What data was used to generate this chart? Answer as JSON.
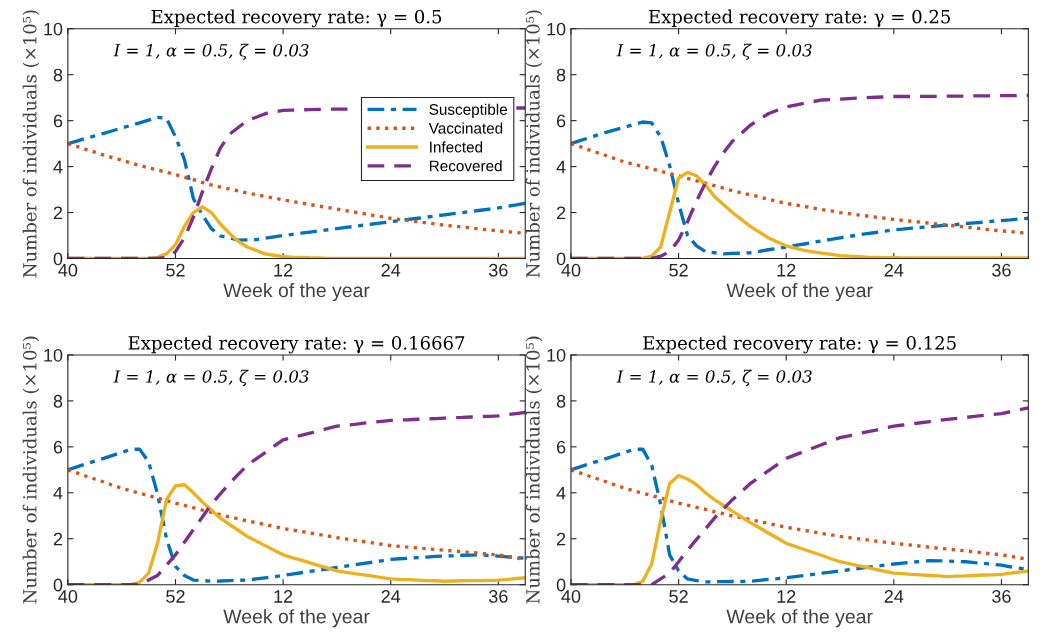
{
  "chart_data": [
    {
      "type": "line",
      "title": "Expected recovery rate: γ = 0.5",
      "xlabel": "Week of the year",
      "ylabel": "Number of individuals (×10⁵)",
      "annotations": [
        "I = 1, α = 0.5, ζ = 0.03"
      ],
      "categories": [
        "40",
        null,
        null,
        null,
        null,
        null,
        null,
        null,
        null,
        null,
        null,
        null,
        "52",
        null,
        null,
        null,
        null,
        null,
        null,
        null,
        null,
        null,
        null,
        null,
        "12",
        null,
        null,
        null,
        null,
        null,
        null,
        null,
        null,
        null,
        null,
        null,
        "24",
        null,
        null,
        null,
        null,
        null,
        null,
        null,
        null,
        null,
        null,
        null,
        "36",
        null,
        null,
        null
      ],
      "ylim": [
        0,
        10
      ],
      "yticks": [
        0,
        2,
        4,
        6,
        8,
        10
      ],
      "grid": false,
      "legend": "right",
      "marker": "none",
      "series": [
        {
          "name": "Susceptible",
          "color": "#0072bd",
          "line_style": "dashdot",
          "values": [
            5.0,
            5.11,
            5.23,
            5.34,
            5.45,
            5.56,
            5.68,
            5.79,
            5.9,
            6.02,
            6.14,
            6.1,
            5.3,
            4.3,
            2.6,
            1.9,
            1.3,
            0.98,
            0.9,
            0.8,
            0.81,
            0.82,
            0.88,
            0.94,
            1.0,
            1.05,
            1.1,
            1.15,
            1.2,
            1.25,
            1.3,
            1.35,
            1.4,
            1.45,
            1.5,
            1.55,
            1.6,
            1.65,
            1.7,
            1.75,
            1.8,
            1.85,
            1.9,
            1.95,
            2.0,
            2.05,
            2.1,
            2.15,
            2.2,
            2.27,
            2.33,
            2.4
          ]
        },
        {
          "name": "Vaccinated",
          "color": "#d95319",
          "line_style": "dotted",
          "values": [
            5.0,
            4.88,
            4.75,
            4.63,
            4.5,
            4.39,
            4.28,
            4.16,
            4.05,
            3.95,
            3.85,
            3.75,
            3.65,
            3.54,
            3.43,
            3.31,
            3.2,
            3.11,
            3.03,
            2.94,
            2.85,
            2.78,
            2.7,
            2.63,
            2.55,
            2.48,
            2.42,
            2.35,
            2.28,
            2.22,
            2.15,
            2.08,
            2.02,
            1.95,
            1.88,
            1.82,
            1.75,
            1.7,
            1.65,
            1.6,
            1.55,
            1.5,
            1.45,
            1.41,
            1.37,
            1.33,
            1.28,
            1.24,
            1.2,
            1.17,
            1.13,
            1.1
          ]
        },
        {
          "name": "Infected",
          "color": "#edb120",
          "line_style": "solid",
          "values": [
            0,
            0,
            0,
            0,
            0,
            0,
            0,
            0,
            0,
            0,
            0.05,
            0.2,
            0.6,
            1.4,
            2.0,
            2.25,
            2.0,
            1.5,
            1.1,
            0.75,
            0.5,
            0.35,
            0.2,
            0.14,
            0.08,
            0.06,
            0.05,
            0.03,
            0.02,
            0,
            0,
            0,
            0,
            0,
            0,
            0,
            0,
            0,
            0,
            0,
            0,
            0,
            0,
            0,
            0,
            0,
            0,
            0,
            0,
            0,
            0,
            0
          ]
        },
        {
          "name": "Recovered",
          "color": "#7e2f8e",
          "line_style": "dashed",
          "values": [
            0,
            0,
            0,
            0,
            0,
            0,
            0,
            0,
            0,
            0,
            0,
            0.05,
            0.3,
            0.9,
            1.8,
            2.9,
            3.9,
            4.8,
            5.4,
            5.7,
            6.0,
            6.15,
            6.3,
            6.38,
            6.45,
            6.46,
            6.47,
            6.48,
            6.49,
            6.5,
            6.5,
            6.5,
            6.5,
            null,
            null,
            null,
            null,
            null,
            null,
            null,
            null,
            null,
            null,
            null,
            null,
            null,
            null,
            null,
            null,
            null,
            6.55,
            6.55
          ]
        }
      ]
    },
    {
      "type": "line",
      "title": "Expected recovery rate: γ = 0.25",
      "xlabel": "Week of the year",
      "ylabel": "Number of individuals (×10⁵)",
      "annotations": [
        "I = 1, α = 0.5, ζ = 0.03"
      ],
      "categories": [
        "40",
        null,
        null,
        null,
        null,
        null,
        null,
        null,
        null,
        null,
        null,
        null,
        "52",
        null,
        null,
        null,
        null,
        null,
        null,
        null,
        null,
        null,
        null,
        null,
        "12",
        null,
        null,
        null,
        null,
        null,
        null,
        null,
        null,
        null,
        null,
        null,
        "24",
        null,
        null,
        null,
        null,
        null,
        null,
        null,
        null,
        null,
        null,
        null,
        "36",
        null,
        null,
        null
      ],
      "ylim": [
        0,
        10
      ],
      "yticks": [
        0,
        2,
        4,
        6,
        8,
        10
      ],
      "grid": false,
      "marker": "none",
      "series": [
        {
          "color": "#0072bd",
          "line_style": "dashdot",
          "values": [
            5.0,
            5.13,
            5.25,
            5.38,
            5.5,
            5.61,
            5.72,
            5.83,
            5.94,
            5.9,
            5.3,
            4.05,
            2.4,
            1.0,
            0.55,
            0.3,
            0.25,
            0.2,
            0.22,
            0.23,
            0.25,
            0.31,
            0.38,
            0.44,
            0.5,
            0.57,
            0.63,
            0.7,
            0.77,
            0.83,
            0.9,
            0.96,
            1.02,
            1.08,
            1.13,
            1.19,
            1.25,
            1.28,
            1.32,
            1.35,
            1.38,
            1.42,
            1.45,
            1.48,
            1.52,
            1.55,
            1.58,
            1.62,
            1.65,
            1.68,
            1.72,
            1.75
          ]
        },
        {
          "color": "#d95319",
          "line_style": "dotted",
          "values": [
            5.0,
            4.87,
            4.73,
            4.6,
            4.47,
            4.33,
            4.2,
            4.1,
            4.0,
            3.9,
            3.8,
            3.7,
            3.6,
            3.49,
            3.38,
            3.28,
            3.17,
            3.06,
            2.95,
            2.86,
            2.77,
            2.68,
            2.58,
            2.49,
            2.4,
            2.33,
            2.27,
            2.2,
            2.13,
            2.07,
            2.0,
            1.95,
            1.9,
            1.85,
            1.8,
            1.75,
            1.7,
            1.66,
            1.62,
            1.58,
            1.53,
            1.49,
            1.45,
            1.41,
            1.37,
            1.33,
            1.28,
            1.24,
            1.2,
            1.17,
            1.13,
            1.1
          ]
        },
        {
          "color": "#edb120",
          "line_style": "solid",
          "values": [
            0,
            0,
            0,
            0,
            0,
            0,
            0,
            0,
            0,
            0.1,
            0.5,
            2.0,
            3.5,
            3.75,
            3.6,
            3.2,
            2.7,
            2.35,
            2.0,
            1.7,
            1.4,
            1.15,
            0.9,
            0.72,
            0.55,
            0.45,
            0.35,
            0.29,
            0.23,
            0.18,
            0.12,
            0.1,
            0.08,
            0.06,
            0.05,
            0.04,
            0.03,
            0.02,
            0.02,
            0.02,
            0.02,
            0.02,
            0.02,
            0.02,
            0.02,
            0.02,
            0.02,
            0.02,
            0.02,
            0.02,
            0.02,
            0.02
          ]
        },
        {
          "color": "#7e2f8e",
          "line_style": "dashed",
          "values": [
            0,
            0,
            0,
            0,
            0,
            0,
            0,
            0,
            0,
            0,
            0.1,
            0.3,
            0.8,
            1.6,
            2.5,
            3.3,
            4.0,
            4.6,
            5.1,
            5.45,
            5.8,
            6.05,
            6.3,
            6.45,
            6.6,
            6.68,
            6.75,
            6.83,
            6.9,
            6.92,
            6.94,
            6.96,
            6.98,
            7.0,
            7.02,
            7.03,
            7.05,
            7.05,
            7.05,
            7.06,
            7.06,
            7.06,
            7.07,
            7.07,
            7.07,
            7.08,
            7.08,
            7.08,
            7.09,
            7.09,
            7.09,
            7.1
          ]
        }
      ]
    },
    {
      "type": "line",
      "title": "Expected recovery rate: γ = 0.16667",
      "xlabel": "Week of the year",
      "ylabel": "Number of individuals (×10⁵)",
      "annotations": [
        "I = 1, α = 0.5, ζ = 0.03"
      ],
      "categories": [
        "40",
        null,
        null,
        null,
        null,
        null,
        null,
        null,
        null,
        null,
        null,
        null,
        "52",
        null,
        null,
        null,
        null,
        null,
        null,
        null,
        null,
        null,
        null,
        null,
        "12",
        null,
        null,
        null,
        null,
        null,
        null,
        null,
        null,
        null,
        null,
        null,
        "24",
        null,
        null,
        null,
        null,
        null,
        null,
        null,
        null,
        null,
        null,
        null,
        "36",
        null,
        null,
        null
      ],
      "ylim": [
        0,
        10
      ],
      "yticks": [
        0,
        2,
        4,
        6,
        8,
        10
      ],
      "grid": false,
      "marker": "none",
      "series": [
        {
          "color": "#0072bd",
          "line_style": "dashdot",
          "values": [
            5.0,
            5.13,
            5.25,
            5.38,
            5.5,
            5.63,
            5.76,
            5.89,
            5.9,
            5.35,
            3.95,
            2.0,
            0.8,
            0.4,
            0.2,
            0.18,
            0.15,
            0.16,
            0.18,
            0.19,
            0.2,
            0.25,
            0.3,
            0.35,
            0.4,
            0.46,
            0.52,
            0.58,
            0.63,
            0.69,
            0.75,
            0.81,
            0.87,
            0.93,
            0.98,
            1.04,
            1.1,
            1.13,
            1.15,
            1.18,
            1.2,
            1.23,
            1.25,
            1.26,
            1.28,
            1.29,
            1.3,
            1.27,
            1.24,
            1.21,
            1.18,
            1.15
          ]
        },
        {
          "color": "#d95319",
          "line_style": "dotted",
          "values": [
            5.0,
            4.87,
            4.73,
            4.6,
            4.47,
            4.33,
            4.2,
            4.09,
            3.98,
            3.88,
            3.77,
            3.66,
            3.55,
            3.45,
            3.35,
            3.25,
            3.15,
            3.05,
            2.95,
            2.87,
            2.78,
            2.7,
            2.62,
            2.53,
            2.45,
            2.38,
            2.32,
            2.25,
            2.18,
            2.12,
            2.05,
            1.99,
            1.93,
            1.88,
            1.82,
            1.76,
            1.7,
            1.67,
            1.63,
            1.6,
            1.57,
            1.53,
            1.5,
            1.47,
            1.43,
            1.4,
            1.37,
            1.33,
            1.3,
            1.23,
            1.17,
            1.1
          ]
        },
        {
          "color": "#edb120",
          "line_style": "solid",
          "values": [
            0,
            0,
            0,
            0,
            0,
            0,
            0,
            0,
            0.1,
            0.5,
            1.8,
            3.7,
            4.3,
            4.35,
            4.0,
            3.6,
            3.25,
            2.9,
            2.63,
            2.37,
            2.1,
            1.9,
            1.7,
            1.5,
            1.3,
            1.18,
            1.07,
            0.95,
            0.83,
            0.72,
            0.6,
            0.54,
            0.48,
            0.43,
            0.37,
            0.31,
            0.25,
            0.23,
            0.22,
            0.2,
            0.18,
            0.17,
            0.15,
            0.16,
            0.17,
            0.18,
            0.18,
            0.19,
            0.2,
            0.23,
            0.27,
            0.3
          ]
        },
        {
          "color": "#7e2f8e",
          "line_style": "dashed",
          "values": [
            0,
            0,
            0,
            0,
            0,
            0,
            0,
            0,
            0,
            0.2,
            0.4,
            0.85,
            1.3,
            1.85,
            2.4,
            2.95,
            3.5,
            3.95,
            4.4,
            4.8,
            5.2,
            5.48,
            5.75,
            6.03,
            6.3,
            6.4,
            6.5,
            6.6,
            6.7,
            6.8,
            6.9,
            6.94,
            6.98,
            7.03,
            7.07,
            7.11,
            7.15,
            7.17,
            7.18,
            7.2,
            7.22,
            7.23,
            7.25,
            7.27,
            7.28,
            7.3,
            7.32,
            7.33,
            7.35,
            7.4,
            7.45,
            7.5
          ]
        }
      ]
    },
    {
      "type": "line",
      "title": "Expected recovery rate: γ = 0.125",
      "xlabel": "Week of the year",
      "ylabel": "Number of individuals (×10⁵)",
      "annotations": [
        "I = 1, α = 0.5, ζ = 0.03"
      ],
      "categories": [
        "40",
        null,
        null,
        null,
        null,
        null,
        null,
        null,
        null,
        null,
        null,
        null,
        "52",
        null,
        null,
        null,
        null,
        null,
        null,
        null,
        null,
        null,
        null,
        null,
        "12",
        null,
        null,
        null,
        null,
        null,
        null,
        null,
        null,
        null,
        null,
        null,
        "24",
        null,
        null,
        null,
        null,
        null,
        null,
        null,
        null,
        null,
        null,
        null,
        "36",
        null,
        null,
        null
      ],
      "ylim": [
        0,
        10
      ],
      "yticks": [
        0,
        2,
        4,
        6,
        8,
        10
      ],
      "grid": false,
      "marker": "none",
      "series": [
        {
          "color": "#0072bd",
          "line_style": "dashdot",
          "values": [
            5.0,
            5.13,
            5.25,
            5.38,
            5.5,
            5.63,
            5.76,
            5.89,
            5.9,
            5.2,
            3.5,
            1.3,
            0.6,
            0.25,
            0.18,
            0.12,
            0.13,
            0.13,
            0.14,
            0.14,
            0.15,
            0.19,
            0.23,
            0.26,
            0.3,
            0.35,
            0.4,
            0.45,
            0.5,
            0.55,
            0.6,
            0.65,
            0.7,
            0.75,
            0.8,
            0.85,
            0.9,
            0.94,
            0.98,
            1.01,
            1.05,
            1.04,
            1.03,
            1.01,
            1.0,
            0.96,
            0.93,
            0.89,
            0.85,
            0.78,
            0.72,
            0.65
          ]
        },
        {
          "color": "#d95319",
          "line_style": "dotted",
          "values": [
            5.0,
            4.87,
            4.73,
            4.6,
            4.47,
            4.33,
            4.2,
            4.09,
            3.98,
            3.88,
            3.77,
            3.66,
            3.55,
            3.46,
            3.37,
            3.28,
            3.18,
            3.09,
            3.0,
            2.92,
            2.83,
            2.75,
            2.67,
            2.58,
            2.5,
            2.43,
            2.37,
            2.3,
            2.23,
            2.17,
            2.1,
            2.05,
            2.0,
            1.95,
            1.9,
            1.85,
            1.8,
            1.76,
            1.72,
            1.68,
            1.63,
            1.59,
            1.55,
            1.51,
            1.47,
            1.43,
            1.38,
            1.34,
            1.3,
            1.23,
            1.17,
            1.1
          ]
        },
        {
          "color": "#edb120",
          "line_style": "solid",
          "values": [
            0,
            0,
            0,
            0,
            0,
            0,
            0,
            0,
            0.15,
            0.9,
            2.8,
            4.4,
            4.75,
            4.6,
            4.35,
            4.0,
            3.7,
            3.45,
            3.2,
            2.95,
            2.7,
            2.48,
            2.25,
            2.03,
            1.8,
            1.67,
            1.53,
            1.4,
            1.27,
            1.13,
            1.0,
            0.92,
            0.83,
            0.75,
            0.67,
            0.58,
            0.5,
            0.48,
            0.45,
            0.43,
            0.4,
            0.38,
            0.35,
            0.37,
            0.38,
            0.4,
            0.42,
            0.43,
            0.45,
            0.5,
            0.55,
            0.6
          ]
        },
        {
          "color": "#7e2f8e",
          "line_style": "dashed",
          "values": [
            0,
            0,
            0,
            0,
            0,
            0,
            0,
            0,
            0,
            0,
            0.25,
            0.5,
            1.0,
            1.5,
            1.97,
            2.43,
            2.9,
            3.3,
            3.7,
            4.05,
            4.4,
            4.68,
            4.95,
            5.23,
            5.5,
            5.65,
            5.8,
            5.95,
            6.1,
            6.25,
            6.4,
            6.48,
            6.57,
            6.65,
            6.73,
            6.82,
            6.9,
            6.95,
            7.0,
            7.05,
            7.1,
            7.15,
            7.2,
            7.24,
            7.28,
            7.33,
            7.37,
            7.41,
            7.45,
            7.53,
            7.62,
            7.7
          ]
        }
      ]
    }
  ]
}
